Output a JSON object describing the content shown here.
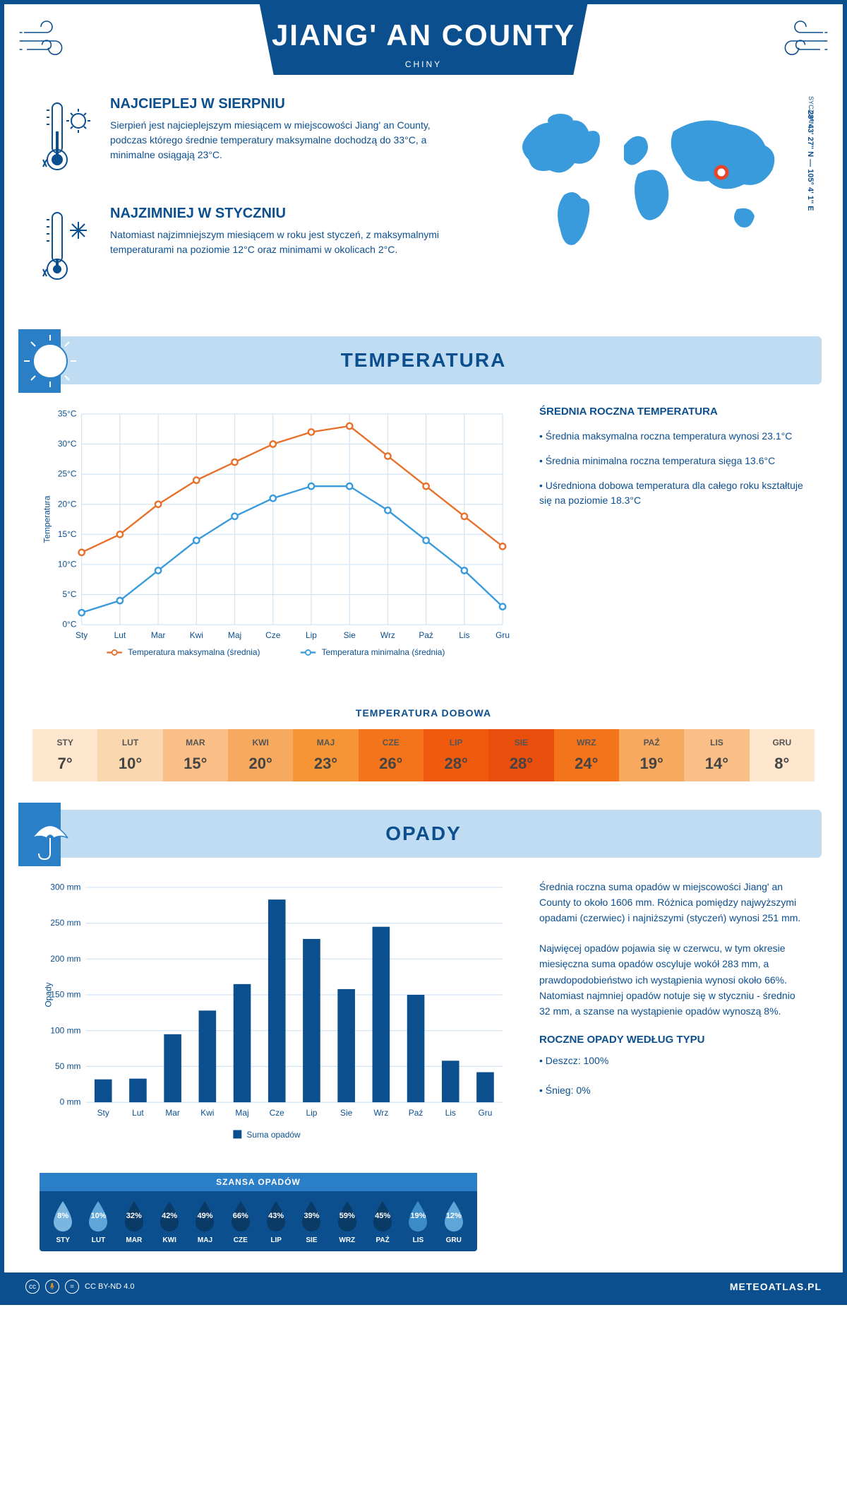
{
  "header": {
    "title": "JIANG' AN COUNTY",
    "subtitle": "CHINY"
  },
  "intro": {
    "hot": {
      "title": "NAJCIEPLEJ W SIERPNIU",
      "text": "Sierpień jest najcieplejszym miesiącem w miejscowości Jiang' an County, podczas którego średnie temperatury maksymalne dochodzą do 33°C, a minimalne osiągają 23°C."
    },
    "cold": {
      "title": "NAJZIMNIEJ W STYCZNIU",
      "text": "Natomiast najzimniejszym miesiącem w roku jest styczeń, z maksymalnymi temperaturami na poziomie 12°C oraz minimami w okolicach 2°C."
    },
    "coords": "28° 43' 27'' N — 105° 4' 1'' E",
    "region": "SYCZUAN"
  },
  "temperature": {
    "section_title": "TEMPERATURA",
    "info_title": "ŚREDNIA ROCZNA TEMPERATURA",
    "bullets": [
      "• Średnia maksymalna roczna temperatura wynosi 23.1°C",
      "• Średnia minimalna roczna temperatura sięga 13.6°C",
      "• Uśredniona dobowa temperatura dla całego roku kształtuje się na poziomie 18.3°C"
    ],
    "chart": {
      "type": "line",
      "months": [
        "Sty",
        "Lut",
        "Mar",
        "Kwi",
        "Maj",
        "Cze",
        "Lip",
        "Sie",
        "Wrz",
        "Paź",
        "Lis",
        "Gru"
      ],
      "ylabel": "Temperatura",
      "ylim": [
        0,
        35
      ],
      "ytick_step": 5,
      "max_series": {
        "label": "Temperatura maksymalna (średnia)",
        "color": "#e8702a",
        "values": [
          12,
          15,
          20,
          24,
          27,
          30,
          32,
          33,
          28,
          23,
          18,
          13
        ]
      },
      "min_series": {
        "label": "Temperatura minimalna (średnia)",
        "color": "#3a9bdc",
        "values": [
          2,
          4,
          9,
          14,
          18,
          21,
          23,
          23,
          19,
          14,
          9,
          3
        ]
      },
      "grid_color": "#d0e4f5",
      "background_color": "#ffffff",
      "marker": "circle",
      "line_width": 2
    },
    "daily": {
      "title": "TEMPERATURA DOBOWA",
      "months": [
        "STY",
        "LUT",
        "MAR",
        "KWI",
        "MAJ",
        "CZE",
        "LIP",
        "SIE",
        "WRZ",
        "PAŹ",
        "LIS",
        "GRU"
      ],
      "values": [
        "7°",
        "10°",
        "15°",
        "20°",
        "23°",
        "26°",
        "28°",
        "28°",
        "24°",
        "19°",
        "14°",
        "8°"
      ],
      "colors": [
        "#fde6cd",
        "#fbd7af",
        "#f9bf87",
        "#f7a95f",
        "#f59535",
        "#f3741a",
        "#ef5a0f",
        "#e94e0c",
        "#f3741a",
        "#f7a95f",
        "#f9bf87",
        "#fde6cd"
      ]
    }
  },
  "precipitation": {
    "section_title": "OPADY",
    "para1": "Średnia roczna suma opadów w miejscowości Jiang' an County to około 1606 mm. Różnica pomiędzy najwyższymi opadami (czerwiec) i najniższymi (styczeń) wynosi 251 mm.",
    "para2": "Najwięcej opadów pojawia się w czerwcu, w tym okresie miesięczna suma opadów oscyluje wokół 283 mm, a prawdopodobieństwo ich wystąpienia wynosi około 66%. Natomiast najmniej opadów notuje się w styczniu - średnio 32 mm, a szanse na wystąpienie opadów wynoszą 8%.",
    "type_title": "ROCZNE OPADY WEDŁUG TYPU",
    "type_bullets": [
      "• Deszcz: 100%",
      "• Śnieg: 0%"
    ],
    "chart": {
      "type": "bar",
      "months": [
        "Sty",
        "Lut",
        "Mar",
        "Kwi",
        "Maj",
        "Cze",
        "Lip",
        "Sie",
        "Wrz",
        "Paź",
        "Lis",
        "Gru"
      ],
      "ylabel": "Opady",
      "ylim": [
        0,
        300
      ],
      "ytick_step": 50,
      "values": [
        32,
        33,
        95,
        128,
        165,
        283,
        228,
        158,
        245,
        150,
        58,
        42
      ],
      "bar_color": "#0b4f8f",
      "legend_label": "Suma opadów",
      "grid_color": "#d0e4f5",
      "bar_width": 0.5
    },
    "chance": {
      "title": "SZANSA OPADÓW",
      "months": [
        "STY",
        "LUT",
        "MAR",
        "KWI",
        "MAJ",
        "CZE",
        "LIP",
        "SIE",
        "WRZ",
        "PAŹ",
        "LIS",
        "GRU"
      ],
      "values": [
        "8%",
        "10%",
        "32%",
        "42%",
        "49%",
        "66%",
        "43%",
        "39%",
        "59%",
        "45%",
        "19%",
        "12%"
      ],
      "drop_colors": [
        "#7ab6e0",
        "#5fa6d8",
        "#0a3a66",
        "#0a3a66",
        "#0a3a66",
        "#0a3a66",
        "#0a3a66",
        "#0a3a66",
        "#0a3a66",
        "#0a3a66",
        "#3a8bc7",
        "#5fa6d8"
      ]
    }
  },
  "footer": {
    "license": "CC BY-ND 4.0",
    "site": "METEOATLAS.PL"
  }
}
